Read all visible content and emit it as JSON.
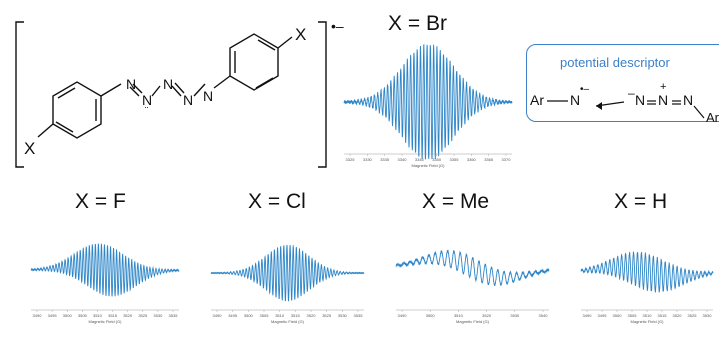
{
  "molecule": {
    "charge": "•–",
    "substituent": "X",
    "nitrogen": "N",
    "lone_pair": "··"
  },
  "descriptor": {
    "title": "potential descriptor",
    "ar_left": "Ar",
    "ar_right": "Ar",
    "n_radical": "N",
    "radical_charge": "•–",
    "minus": "–",
    "plus": "+",
    "nitrogen": "N",
    "colors": {
      "accent": "#3d7fc8"
    }
  },
  "spectra": [
    {
      "label": "X = Br",
      "x_axis_label": "Magnetic Field (G)",
      "tick_labels": [
        "3325",
        "3330",
        "3335",
        "3340",
        "3345",
        "3350",
        "3355",
        "3360",
        "3365",
        "3370"
      ]
    },
    {
      "label": "X = F",
      "x_axis_label": "Magnetic Field (G)",
      "tick_labels": [
        "3490",
        "3495",
        "3500",
        "3505",
        "3510",
        "3515",
        "3520",
        "3525",
        "3530",
        "3535"
      ]
    },
    {
      "label": "X = Cl",
      "x_axis_label": "Magnetic Field (G)",
      "tick_labels": [
        "3490",
        "3495",
        "3500",
        "3505",
        "3510",
        "3515",
        "3520",
        "3525",
        "3530",
        "3535"
      ]
    },
    {
      "label": "X = Me",
      "x_axis_label": "Magnetic Field (G)",
      "tick_labels": [
        "3490",
        "3500",
        "3510",
        "3520",
        "3530",
        "3540"
      ]
    },
    {
      "label": "X = H",
      "x_axis_label": "Magnetic Field (G)",
      "tick_labels": [
        "3490",
        "3495",
        "3500",
        "3505",
        "3510",
        "3515",
        "3520",
        "3525",
        "3530"
      ]
    }
  ],
  "colors": {
    "spectrum": "#2e86c8",
    "ink": "#111111"
  }
}
